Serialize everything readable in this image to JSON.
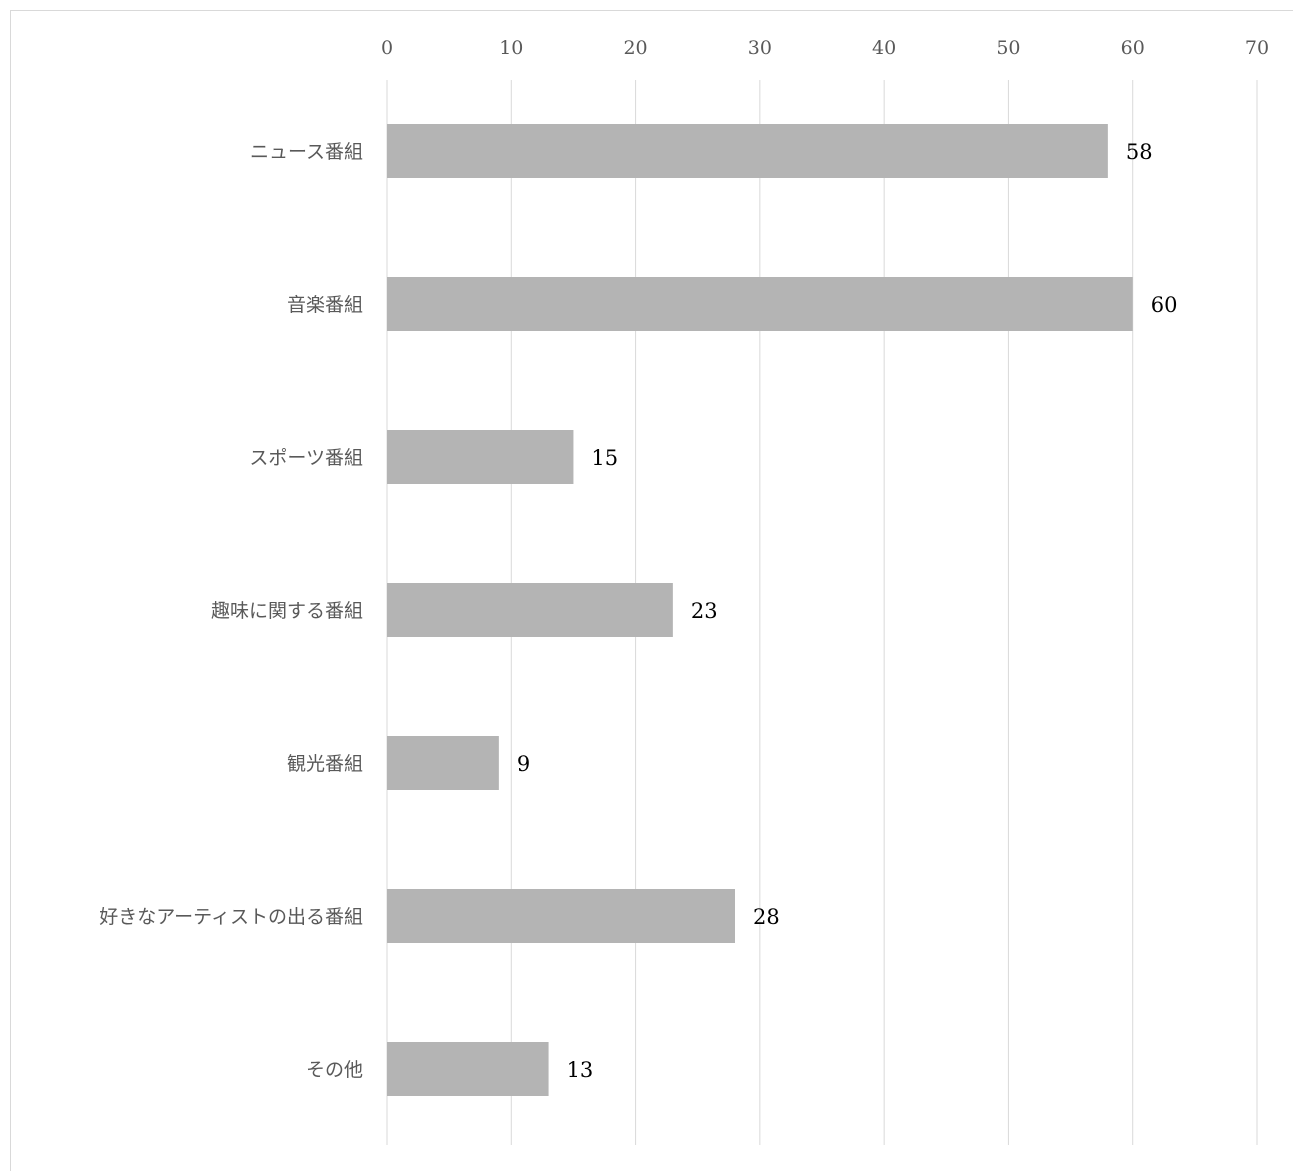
{
  "chart_data": {
    "type": "bar",
    "orientation": "horizontal",
    "categories": [
      "ニュース番組",
      "音楽番組",
      "スポーツ番組",
      "趣味に関する番組",
      "観光番組",
      "好きなアーティストの出る番組",
      "その他"
    ],
    "values": [
      58,
      60,
      15,
      23,
      9,
      28,
      13
    ],
    "data_labels": [
      "58",
      "60",
      "15",
      "23",
      "9",
      "28",
      "13"
    ],
    "title": "",
    "xlabel": "",
    "ylabel": "",
    "xlim": [
      0,
      70
    ],
    "ticks": [
      0,
      10,
      20,
      30,
      40,
      50,
      60,
      70
    ],
    "tick_labels": [
      "0",
      "10",
      "20",
      "30",
      "40",
      "50",
      "60",
      "70"
    ],
    "axis_position": "top",
    "grid": true,
    "legend": "none",
    "bar_color": "#b4b4b4",
    "grid_color": "#d9d9d9"
  }
}
